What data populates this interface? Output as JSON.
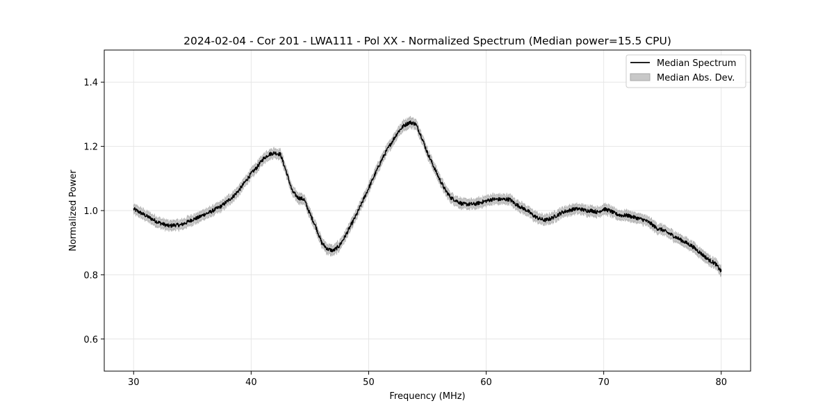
{
  "chart_data": {
    "type": "line",
    "title": "2024-02-04 - Cor 201 - LWA111 - Pol XX - Normalized Spectrum (Median power=15.5 CPU)",
    "xlabel": "Frequency (MHz)",
    "ylabel": "Normalized Power",
    "xlim": [
      27.5,
      82.5
    ],
    "ylim": [
      0.5,
      1.5
    ],
    "xticks": [
      30,
      40,
      50,
      60,
      70,
      80
    ],
    "xtick_labels": [
      "30",
      "40",
      "50",
      "60",
      "70",
      "80"
    ],
    "yticks": [
      0.6,
      0.8,
      1.0,
      1.2,
      1.4
    ],
    "ytick_labels": [
      "0.6",
      "0.8",
      "1.0",
      "1.2",
      "1.4"
    ],
    "grid": true,
    "legend_position": "top-right",
    "series": [
      {
        "name": "Median Spectrum",
        "style": "line",
        "color": "#000000",
        "x": [
          30,
          30.5,
          31,
          31.5,
          32,
          32.5,
          33,
          33.5,
          34,
          34.5,
          35,
          35.5,
          36,
          36.5,
          37,
          37.5,
          38,
          38.5,
          39,
          39.5,
          40,
          40.5,
          41,
          41.5,
          42,
          42.5,
          43,
          43.5,
          44,
          44.5,
          45,
          45.5,
          46,
          46.5,
          47,
          47.5,
          48,
          48.5,
          49,
          49.5,
          50,
          50.5,
          51,
          51.5,
          52,
          52.5,
          53,
          53.5,
          54,
          54.5,
          55,
          55.5,
          56,
          56.5,
          57,
          57.5,
          58,
          58.5,
          59,
          59.5,
          60,
          60.5,
          61,
          61.5,
          62,
          62.5,
          63,
          63.5,
          64,
          64.5,
          65,
          65.5,
          66,
          66.5,
          67,
          67.5,
          68,
          68.5,
          69,
          69.5,
          70,
          70.5,
          71,
          71.5,
          72,
          72.5,
          73,
          73.5,
          74,
          74.5,
          75,
          75.5,
          76,
          76.5,
          77,
          77.5,
          78,
          78.5,
          79,
          79.5,
          80
        ],
        "y": [
          1.005,
          0.995,
          0.985,
          0.975,
          0.965,
          0.958,
          0.952,
          0.955,
          0.955,
          0.963,
          0.972,
          0.978,
          0.988,
          0.995,
          1.005,
          1.015,
          1.03,
          1.045,
          1.065,
          1.09,
          1.115,
          1.135,
          1.16,
          1.175,
          1.18,
          1.175,
          1.12,
          1.06,
          1.04,
          1.035,
          0.99,
          0.95,
          0.9,
          0.88,
          0.875,
          0.89,
          0.92,
          0.955,
          0.99,
          1.03,
          1.07,
          1.11,
          1.15,
          1.185,
          1.215,
          1.245,
          1.265,
          1.275,
          1.27,
          1.23,
          1.18,
          1.14,
          1.1,
          1.065,
          1.04,
          1.03,
          1.02,
          1.02,
          1.02,
          1.025,
          1.03,
          1.035,
          1.035,
          1.035,
          1.035,
          1.02,
          1.01,
          1.0,
          0.985,
          0.975,
          0.97,
          0.975,
          0.985,
          0.995,
          1.0,
          1.005,
          1.005,
          1.0,
          1.0,
          0.995,
          1.005,
          1.0,
          0.99,
          0.985,
          0.985,
          0.98,
          0.975,
          0.97,
          0.96,
          0.945,
          0.94,
          0.93,
          0.92,
          0.91,
          0.9,
          0.89,
          0.875,
          0.86,
          0.845,
          0.835,
          0.81
        ]
      },
      {
        "name": "Median Abs. Dev.",
        "style": "band",
        "color": "#c8c8c8",
        "half_width": 0.012
      }
    ]
  }
}
